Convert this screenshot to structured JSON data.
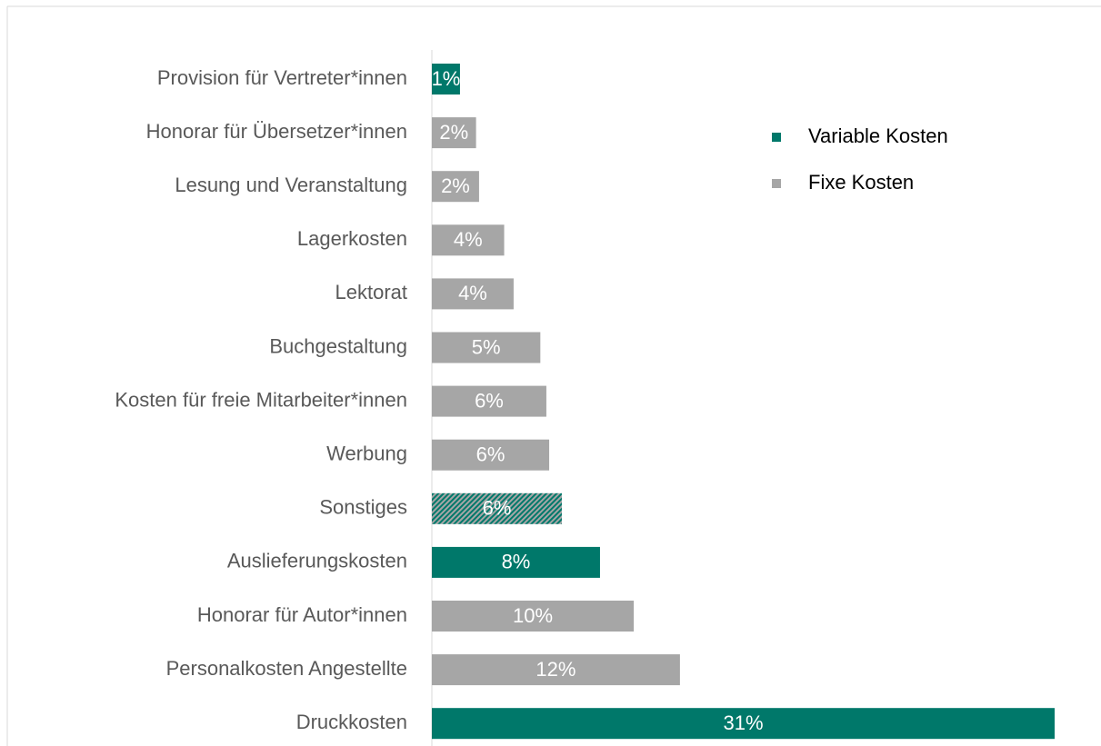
{
  "chart_data": {
    "type": "barh",
    "categories": [
      "Provision für Vertreter*innen",
      "Honorar für Übersetzer*innen",
      "Lesung und Veranstaltung",
      "Lagerkosten",
      "Lektorat",
      "Buchgestaltung",
      "Kosten für freie Mitarbeiter*innen",
      "Werbung",
      "Sonstiges",
      "Auslieferungskosten",
      "Honorar für Autor*innen",
      "Personalkosten Angestellte",
      "Druckkosten"
    ],
    "values": [
      1.4,
      2.2,
      2.35,
      3.6,
      4.07,
      5.4,
      5.7,
      5.84,
      6.47,
      8.37,
      10.05,
      12.35,
      31
    ],
    "value_labels": [
      "1%",
      "2%",
      "2%",
      "4%",
      "4%",
      "5%",
      "6%",
      "6%",
      "6%",
      "8%",
      "10%",
      "12%",
      "31%"
    ],
    "colors": [
      "#00786a",
      "#a6a6a6",
      "#a6a6a6",
      "#a6a6a6",
      "#a6a6a6",
      "#a6a6a6",
      "#a6a6a6",
      "#a6a6a6",
      "striped",
      "#00786a",
      "#a6a6a6",
      "#a6a6a6",
      "#00786a"
    ],
    "legend": [
      {
        "name": "Variable Kosten",
        "color": "#00786a"
      },
      {
        "name": "Fixe Kosten",
        "color": "#a6a6a6"
      }
    ]
  }
}
